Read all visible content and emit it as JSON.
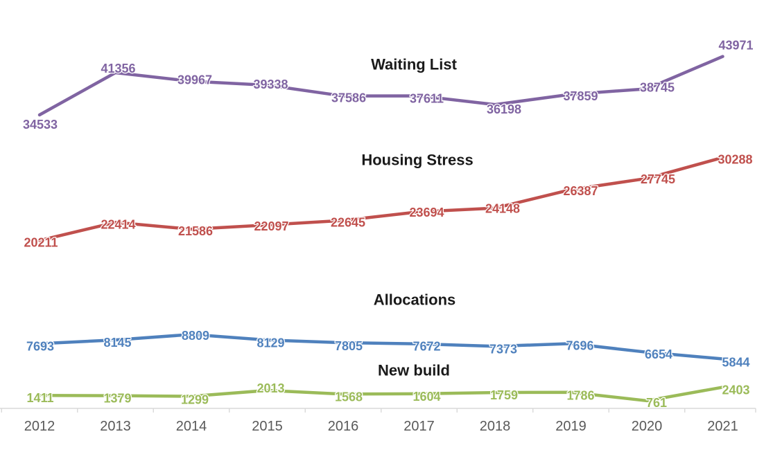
{
  "chart_data": {
    "type": "line",
    "title": "",
    "categories": [
      "2012",
      "2013",
      "2014",
      "2015",
      "2016",
      "2017",
      "2018",
      "2019",
      "2020",
      "2021"
    ],
    "series": [
      {
        "name": "Waiting List",
        "color": "#8064A2",
        "values": [
          34533,
          41356,
          39967,
          39338,
          37586,
          37611,
          36198,
          37859,
          38745,
          43971
        ]
      },
      {
        "name": "Housing Stress",
        "color": "#C0504D",
        "values": [
          20211,
          22414,
          21586,
          22097,
          22645,
          23694,
          24148,
          26387,
          27745,
          30288
        ]
      },
      {
        "name": "Allocations",
        "color": "#4F81BD",
        "values": [
          7693,
          8145,
          8809,
          8129,
          7805,
          7672,
          7373,
          7696,
          6654,
          5844
        ]
      },
      {
        "name": "New build",
        "color": "#9BBB59",
        "values": [
          1411,
          1379,
          1299,
          2013,
          1568,
          1604,
          1759,
          1786,
          761,
          2403
        ]
      }
    ],
    "data_labels": "every point labeled with its value in the series color",
    "legend_position": "none (bold series titles placed inline above each line)",
    "grid": false,
    "background": "#FFFFFF",
    "axis": {
      "x_tick_labels": [
        "2012",
        "2013",
        "2014",
        "2015",
        "2016",
        "2017",
        "2018",
        "2019",
        "2020",
        "2021"
      ],
      "axis_color": "#D9D9D9",
      "tick_label_color": "#595959",
      "y_axis_visible": false
    }
  }
}
